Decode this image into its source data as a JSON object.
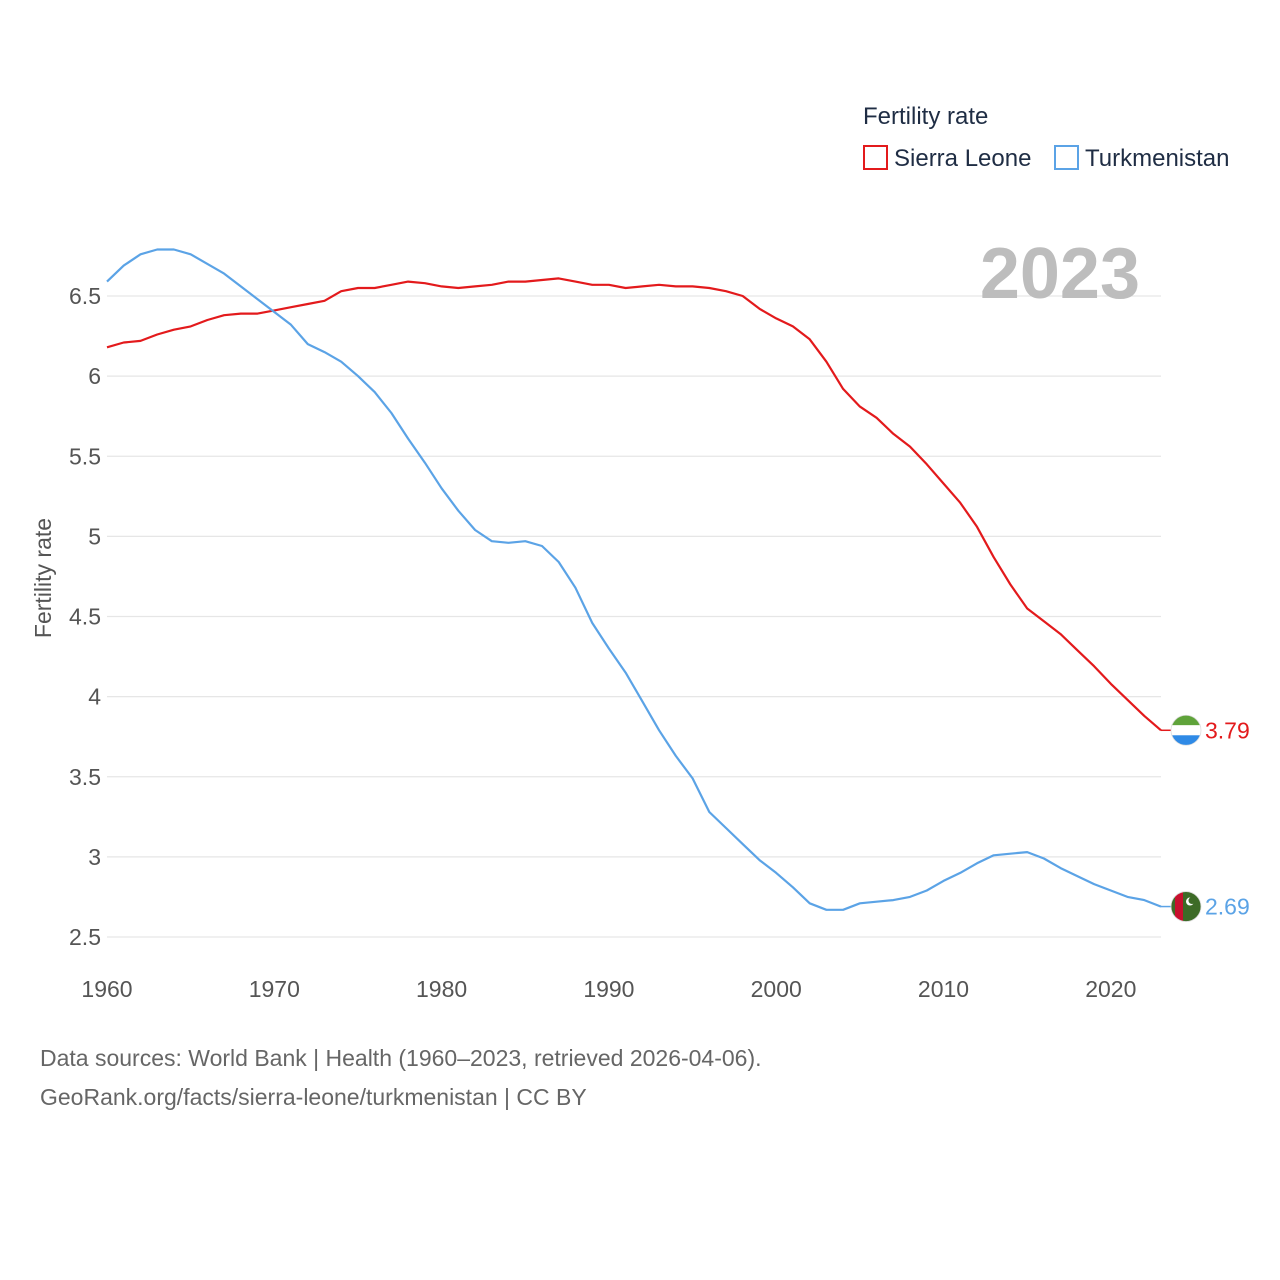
{
  "chart_data": {
    "type": "line",
    "title": "Fertility rate",
    "ylabel": "Fertility rate",
    "xlabel": "",
    "year_label": "2023",
    "xlim": [
      1960,
      2023
    ],
    "ylim": [
      2.5,
      6.8
    ],
    "x_ticks": [
      1960,
      1970,
      1980,
      1990,
      2000,
      2010,
      2020
    ],
    "x_tick_labels": [
      "1960",
      "1970",
      "1980",
      "1990",
      "2000",
      "2010",
      "2020"
    ],
    "y_ticks": [
      2.5,
      3,
      3.5,
      4,
      4.5,
      5,
      5.5,
      6,
      6.5
    ],
    "y_tick_labels": [
      "2.5",
      "3",
      "3.5",
      "4",
      "4.5",
      "5",
      "5.5",
      "6",
      "6.5"
    ],
    "x": [
      1960,
      1961,
      1962,
      1963,
      1964,
      1965,
      1966,
      1967,
      1968,
      1969,
      1970,
      1971,
      1972,
      1973,
      1974,
      1975,
      1976,
      1977,
      1978,
      1979,
      1980,
      1981,
      1982,
      1983,
      1984,
      1985,
      1986,
      1987,
      1988,
      1989,
      1990,
      1991,
      1992,
      1993,
      1994,
      1995,
      1996,
      1997,
      1998,
      1999,
      2000,
      2001,
      2002,
      2003,
      2004,
      2005,
      2006,
      2007,
      2008,
      2009,
      2010,
      2011,
      2012,
      2013,
      2014,
      2015,
      2016,
      2017,
      2018,
      2019,
      2020,
      2021,
      2022,
      2023
    ],
    "series": [
      {
        "name": "Sierra Leone",
        "color": "#e31a1c",
        "end_label": "3.79",
        "flag": "sierra-leone-flag",
        "values": [
          6.18,
          6.21,
          6.22,
          6.26,
          6.29,
          6.31,
          6.35,
          6.38,
          6.39,
          6.39,
          6.41,
          6.43,
          6.45,
          6.47,
          6.53,
          6.55,
          6.55,
          6.57,
          6.59,
          6.58,
          6.56,
          6.55,
          6.56,
          6.57,
          6.59,
          6.59,
          6.6,
          6.61,
          6.59,
          6.57,
          6.57,
          6.55,
          6.56,
          6.57,
          6.56,
          6.56,
          6.55,
          6.53,
          6.5,
          6.42,
          6.36,
          6.31,
          6.23,
          6.09,
          5.92,
          5.81,
          5.74,
          5.64,
          5.56,
          5.45,
          5.33,
          5.21,
          5.06,
          4.87,
          4.7,
          4.55,
          4.47,
          4.39,
          4.29,
          4.19,
          4.08,
          3.98,
          3.88,
          3.79
        ]
      },
      {
        "name": "Turkmenistan",
        "color": "#5ba3e6",
        "end_label": "2.69",
        "flag": "turkmenistan-flag",
        "values": [
          6.59,
          6.69,
          6.76,
          6.79,
          6.79,
          6.76,
          6.7,
          6.64,
          6.56,
          6.48,
          6.4,
          6.32,
          6.2,
          6.15,
          6.09,
          6.0,
          5.9,
          5.77,
          5.61,
          5.46,
          5.3,
          5.16,
          5.04,
          4.97,
          4.96,
          4.97,
          4.94,
          4.84,
          4.68,
          4.46,
          4.3,
          4.15,
          3.97,
          3.79,
          3.63,
          3.49,
          3.28,
          3.18,
          3.08,
          2.98,
          2.9,
          2.81,
          2.71,
          2.67,
          2.67,
          2.71,
          2.72,
          2.73,
          2.75,
          2.79,
          2.85,
          2.9,
          2.96,
          3.01,
          3.02,
          3.03,
          2.99,
          2.93,
          2.88,
          2.83,
          2.79,
          2.75,
          2.73,
          2.69
        ]
      }
    ]
  },
  "source": {
    "line1": "Data sources: World Bank | Health (1960–2023, retrieved 2026-04-06).",
    "line2": "GeoRank.org/facts/sierra-leone/turkmenistan | CC BY"
  }
}
